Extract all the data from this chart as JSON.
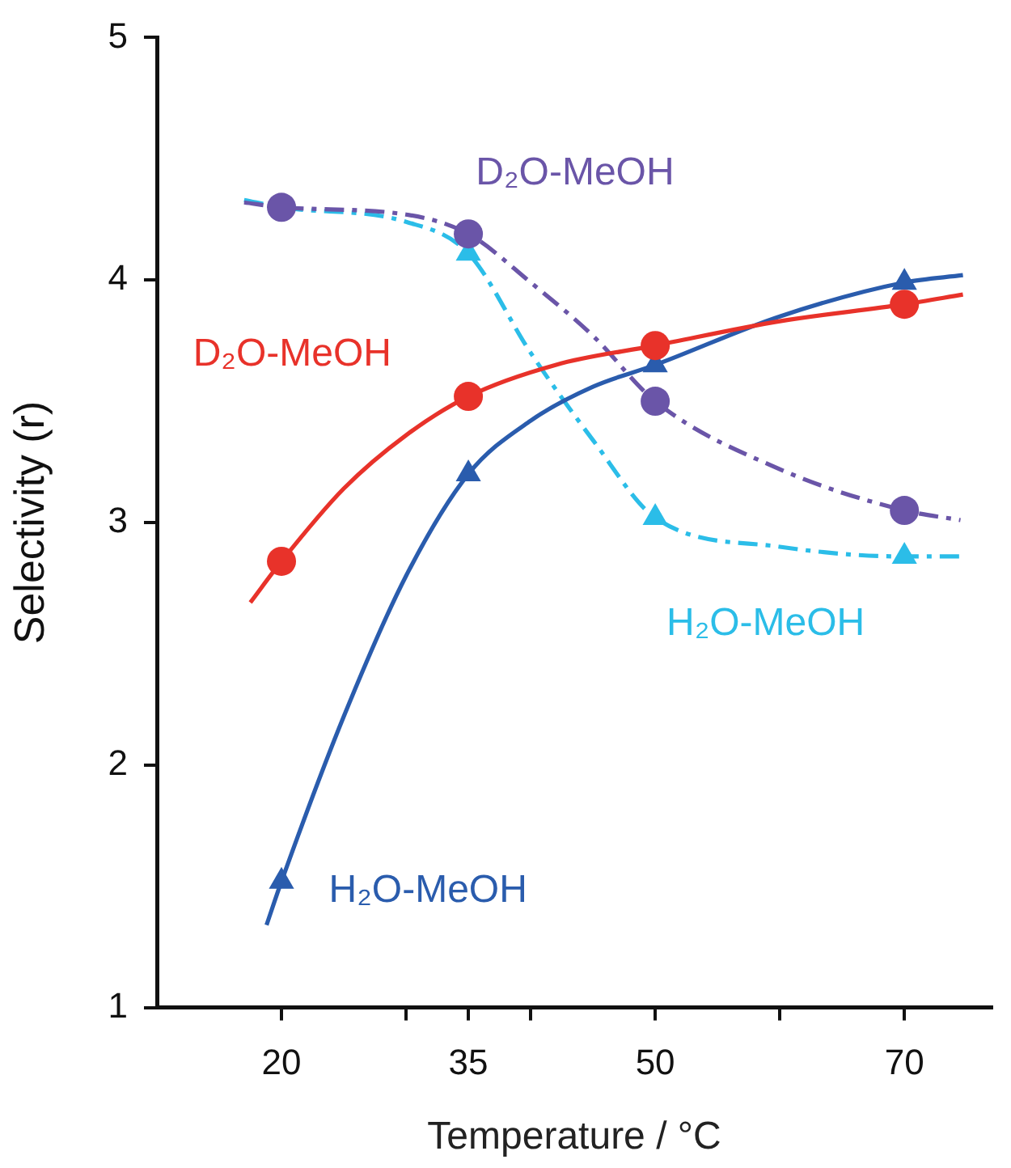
{
  "chart_data": {
    "type": "scatter",
    "xlabel": "Temperature / °C",
    "ylabel": "Selectivity (r)",
    "x": [
      20,
      35,
      50,
      70
    ],
    "xlim": [
      10,
      77
    ],
    "xticks": [
      20,
      {
        "value": 30,
        "label": null
      },
      35,
      {
        "value": 40,
        "label": null
      },
      50,
      {
        "value": 60,
        "label": null
      },
      70
    ],
    "ylim": [
      1,
      5
    ],
    "yticks": [
      1,
      2,
      3,
      4,
      5
    ],
    "grid": false,
    "legend": false,
    "series": [
      {
        "name": "D₂O-MeOH",
        "marker": "circle",
        "color": "#e8322a",
        "values": [
          2.84,
          3.52,
          3.73,
          3.9
        ]
      },
      {
        "name": "H₂O-MeOH",
        "marker": "triangle",
        "color": "#2a5cad",
        "values": [
          1.52,
          3.2,
          3.65,
          3.99
        ]
      },
      {
        "name": "D₂O-MeOH",
        "marker": "circle",
        "color": "#6a55a8",
        "values": [
          4.3,
          4.19,
          3.5,
          3.05
        ]
      },
      {
        "name": "H₂O-MeOH",
        "marker": "triangle",
        "color": "#2bbde8",
        "values": [
          null,
          4.11,
          3.02,
          2.86
        ]
      },
      {
        "type": "line",
        "marker": "none",
        "line_style": "solid",
        "color": "#e8322a",
        "x": [
          17.5,
          20,
          25,
          30,
          35,
          42,
          50,
          60,
          70,
          74.7
        ],
        "values": [
          2.67,
          2.84,
          3.14,
          3.36,
          3.52,
          3.65,
          3.73,
          3.83,
          3.9,
          3.94
        ]
      },
      {
        "type": "line",
        "marker": "none",
        "line_style": "solid",
        "color": "#2a5cad",
        "x": [
          18.8,
          20,
          25,
          30,
          35,
          40,
          45,
          50,
          60,
          70,
          74.7
        ],
        "values": [
          1.34,
          1.52,
          2.2,
          2.78,
          3.2,
          3.42,
          3.56,
          3.65,
          3.85,
          3.99,
          4.02
        ]
      },
      {
        "type": "line",
        "marker": "none",
        "line_style": "dashed",
        "color": "#6a55a8",
        "x": [
          17,
          20,
          30,
          35,
          40,
          45,
          50,
          60,
          70,
          74.5
        ],
        "values": [
          4.32,
          4.3,
          4.27,
          4.19,
          3.99,
          3.77,
          3.5,
          3.22,
          3.05,
          3.01
        ]
      },
      {
        "type": "line",
        "marker": "none",
        "line_style": "dashed",
        "color": "#2bbde8",
        "x": [
          17,
          20,
          30,
          35,
          40,
          45,
          50,
          60,
          70,
          74.7
        ],
        "values": [
          4.33,
          4.3,
          4.24,
          4.11,
          3.7,
          3.34,
          3.02,
          2.9,
          2.86,
          2.86
        ]
      }
    ]
  }
}
